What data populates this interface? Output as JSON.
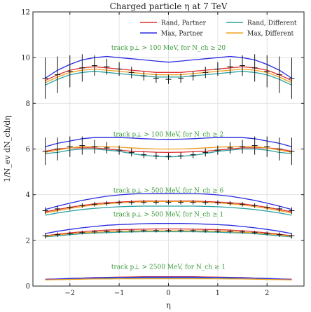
{
  "chart_data": {
    "type": "line",
    "title": "Charged particle η at 7 TeV",
    "xlabel": "η",
    "ylabel": "1/N_ev dN_ch/dη",
    "xlim": [
      -2.75,
      2.75
    ],
    "ylim": [
      0,
      12
    ],
    "xticks": [
      -2,
      -1,
      0,
      1,
      2
    ],
    "yticks": [
      0,
      2,
      4,
      6,
      8,
      10,
      12
    ],
    "grid": true,
    "legend_position": "top-right",
    "legend": [
      {
        "name": "Rand, Partner",
        "color": "#e03030"
      },
      {
        "name": "Rand, Different",
        "color": "#2aa1a0"
      },
      {
        "name": "Max, Partner",
        "color": "#2a2ae0"
      },
      {
        "name": "Max, Different",
        "color": "#f0a020"
      }
    ],
    "annotations": [
      {
        "text": "track p⊥ > 100 MeV, for N_ch ≥ 20",
        "x": 0,
        "y": 10.35
      },
      {
        "text": "track p⊥ > 100 MeV, for N_ch ≥ 2",
        "x": 0,
        "y": 6.55
      },
      {
        "text": "track p⊥ > 500 MeV, for N_ch ≥ 6",
        "x": 0,
        "y": 4.1
      },
      {
        "text": "track p⊥ > 500 MeV, for N_ch ≥ 1",
        "x": 0,
        "y": 3.05
      },
      {
        "text": "track p⊥ > 2500 MeV, for N_ch ≥ 1",
        "x": 0,
        "y": 0.75
      }
    ],
    "panels": [
      {
        "name": "track p⊥ > 100 MeV, for N_ch ≥ 20",
        "x": [
          -2.5,
          -2.25,
          -2.0,
          -1.75,
          -1.5,
          -1.25,
          -1.0,
          -0.75,
          -0.5,
          -0.25,
          0.0,
          0.25,
          0.5,
          0.75,
          1.0,
          1.25,
          1.5,
          1.75,
          2.0,
          2.25,
          2.5
        ],
        "data": {
          "y": [
            9.1,
            9.25,
            9.4,
            9.55,
            9.65,
            9.6,
            9.5,
            9.35,
            9.2,
            9.1,
            9.05,
            9.1,
            9.2,
            9.35,
            9.5,
            9.6,
            9.65,
            9.55,
            9.4,
            9.25,
            9.1
          ],
          "err": [
            0.9,
            0.8,
            0.7,
            0.6,
            0.45,
            0.35,
            0.3,
            0.25,
            0.2,
            0.2,
            0.2,
            0.2,
            0.2,
            0.25,
            0.3,
            0.35,
            0.45,
            0.6,
            0.7,
            0.8,
            0.9
          ]
        },
        "series": [
          {
            "name": "Rand, Partner",
            "values": [
              9.0,
              9.25,
              9.45,
              9.55,
              9.6,
              9.55,
              9.5,
              9.45,
              9.4,
              9.35,
              9.35,
              9.35,
              9.4,
              9.45,
              9.5,
              9.55,
              9.6,
              9.55,
              9.45,
              9.25,
              9.0
            ]
          },
          {
            "name": "Rand, Different",
            "values": [
              8.8,
              9.05,
              9.25,
              9.35,
              9.4,
              9.35,
              9.3,
              9.25,
              9.2,
              9.15,
              9.15,
              9.15,
              9.2,
              9.25,
              9.3,
              9.35,
              9.4,
              9.35,
              9.25,
              9.05,
              8.8
            ]
          },
          {
            "name": "Max, Partner",
            "values": [
              9.1,
              9.45,
              9.7,
              9.9,
              10.0,
              10.05,
              10.0,
              9.95,
              9.9,
              9.85,
              9.8,
              9.85,
              9.9,
              9.95,
              10.0,
              10.05,
              10.0,
              9.9,
              9.7,
              9.45,
              9.1
            ]
          },
          {
            "name": "Max, Different",
            "values": [
              8.9,
              9.15,
              9.35,
              9.45,
              9.5,
              9.45,
              9.4,
              9.35,
              9.3,
              9.25,
              9.25,
              9.25,
              9.3,
              9.35,
              9.4,
              9.45,
              9.5,
              9.45,
              9.35,
              9.15,
              8.9
            ]
          }
        ]
      },
      {
        "name": "track p⊥ > 100 MeV, for N_ch ≥ 2",
        "x": [
          -2.5,
          -2.25,
          -2.0,
          -1.75,
          -1.5,
          -1.25,
          -1.0,
          -0.75,
          -0.5,
          -0.25,
          0.0,
          0.25,
          0.5,
          0.75,
          1.0,
          1.25,
          1.5,
          1.75,
          2.0,
          2.25,
          2.5
        ],
        "data": {
          "y": [
            5.9,
            6.0,
            6.1,
            6.15,
            6.1,
            6.05,
            5.95,
            5.85,
            5.75,
            5.7,
            5.68,
            5.7,
            5.75,
            5.85,
            5.95,
            6.05,
            6.1,
            6.15,
            6.1,
            6.0,
            5.9
          ],
          "err": [
            0.6,
            0.5,
            0.45,
            0.4,
            0.3,
            0.25,
            0.2,
            0.18,
            0.15,
            0.15,
            0.15,
            0.15,
            0.15,
            0.18,
            0.2,
            0.25,
            0.3,
            0.4,
            0.45,
            0.5,
            0.6
          ]
        },
        "series": [
          {
            "name": "Rand, Partner",
            "values": [
              5.9,
              6.0,
              6.05,
              6.05,
              6.05,
              6.0,
              5.95,
              5.9,
              5.88,
              5.86,
              5.85,
              5.86,
              5.88,
              5.9,
              5.95,
              6.0,
              6.05,
              6.05,
              6.05,
              6.0,
              5.9
            ]
          },
          {
            "name": "Rand, Different",
            "values": [
              5.8,
              5.85,
              5.95,
              6.0,
              6.0,
              5.95,
              5.9,
              5.8,
              5.72,
              5.68,
              5.65,
              5.68,
              5.72,
              5.8,
              5.9,
              5.95,
              6.0,
              6.0,
              5.95,
              5.85,
              5.8
            ]
          },
          {
            "name": "Max, Partner",
            "values": [
              6.1,
              6.25,
              6.35,
              6.45,
              6.5,
              6.5,
              6.5,
              6.48,
              6.45,
              6.43,
              6.42,
              6.43,
              6.45,
              6.48,
              6.5,
              6.5,
              6.5,
              6.45,
              6.35,
              6.25,
              6.1
            ]
          },
          {
            "name": "Max, Different",
            "values": [
              5.85,
              5.95,
              6.05,
              6.1,
              6.1,
              6.1,
              6.08,
              6.05,
              6.02,
              6.0,
              6.0,
              6.0,
              6.02,
              6.05,
              6.08,
              6.1,
              6.1,
              6.1,
              6.05,
              5.95,
              5.85
            ]
          }
        ]
      },
      {
        "name": "track p⊥ > 500 MeV, for N_ch ≥ 6",
        "x": [
          -2.5,
          -2.25,
          -2.0,
          -1.75,
          -1.5,
          -1.25,
          -1.0,
          -0.75,
          -0.5,
          -0.25,
          0.0,
          0.25,
          0.5,
          0.75,
          1.0,
          1.25,
          1.5,
          1.75,
          2.0,
          2.25,
          2.5
        ],
        "data": {
          "y": [
            3.3,
            3.38,
            3.45,
            3.52,
            3.58,
            3.62,
            3.65,
            3.66,
            3.67,
            3.67,
            3.67,
            3.67,
            3.67,
            3.66,
            3.65,
            3.62,
            3.58,
            3.52,
            3.45,
            3.38,
            3.3
          ],
          "err": [
            0.15,
            0.13,
            0.12,
            0.1,
            0.1,
            0.1,
            0.1,
            0.1,
            0.1,
            0.1,
            0.1,
            0.1,
            0.1,
            0.1,
            0.1,
            0.1,
            0.1,
            0.1,
            0.12,
            0.13,
            0.15
          ]
        },
        "series": [
          {
            "name": "Rand, Partner",
            "values": [
              3.25,
              3.35,
              3.45,
              3.53,
              3.6,
              3.65,
              3.68,
              3.7,
              3.72,
              3.72,
              3.72,
              3.72,
              3.72,
              3.7,
              3.68,
              3.65,
              3.6,
              3.53,
              3.45,
              3.35,
              3.25
            ]
          },
          {
            "name": "Rand, Different",
            "values": [
              3.1,
              3.2,
              3.28,
              3.35,
              3.4,
              3.44,
              3.47,
              3.49,
              3.5,
              3.5,
              3.5,
              3.5,
              3.5,
              3.49,
              3.47,
              3.44,
              3.4,
              3.35,
              3.28,
              3.2,
              3.1
            ]
          },
          {
            "name": "Max, Partner",
            "values": [
              3.35,
              3.5,
              3.63,
              3.75,
              3.85,
              3.93,
              3.99,
              4.03,
              4.05,
              4.06,
              4.06,
              4.06,
              4.05,
              4.03,
              3.99,
              3.93,
              3.85,
              3.75,
              3.63,
              3.5,
              3.35
            ]
          },
          {
            "name": "Max, Different",
            "values": [
              3.2,
              3.3,
              3.4,
              3.48,
              3.55,
              3.6,
              3.64,
              3.67,
              3.69,
              3.7,
              3.7,
              3.7,
              3.69,
              3.67,
              3.64,
              3.6,
              3.55,
              3.48,
              3.4,
              3.3,
              3.2
            ]
          }
        ]
      },
      {
        "name": "track p⊥ > 500 MeV, for N_ch ≥ 1",
        "x": [
          -2.5,
          -2.25,
          -2.0,
          -1.75,
          -1.5,
          -1.25,
          -1.0,
          -0.75,
          -0.5,
          -0.25,
          0.0,
          0.25,
          0.5,
          0.75,
          1.0,
          1.25,
          1.5,
          1.75,
          2.0,
          2.25,
          2.5
        ],
        "data": {
          "y": [
            2.2,
            2.25,
            2.3,
            2.34,
            2.37,
            2.39,
            2.41,
            2.42,
            2.43,
            2.43,
            2.43,
            2.43,
            2.43,
            2.42,
            2.41,
            2.39,
            2.37,
            2.34,
            2.3,
            2.25,
            2.2
          ],
          "err": [
            0.12,
            0.1,
            0.09,
            0.08,
            0.08,
            0.08,
            0.08,
            0.08,
            0.08,
            0.08,
            0.08,
            0.08,
            0.08,
            0.08,
            0.08,
            0.08,
            0.08,
            0.08,
            0.09,
            0.1,
            0.12
          ]
        },
        "series": [
          {
            "name": "Rand, Partner",
            "values": [
              2.2,
              2.27,
              2.33,
              2.38,
              2.42,
              2.45,
              2.47,
              2.48,
              2.49,
              2.5,
              2.5,
              2.5,
              2.49,
              2.48,
              2.47,
              2.45,
              2.42,
              2.38,
              2.33,
              2.27,
              2.2
            ]
          },
          {
            "name": "Rand, Different",
            "values": [
              2.15,
              2.2,
              2.25,
              2.29,
              2.32,
              2.34,
              2.36,
              2.37,
              2.38,
              2.38,
              2.38,
              2.38,
              2.38,
              2.37,
              2.36,
              2.34,
              2.32,
              2.29,
              2.25,
              2.2,
              2.15
            ]
          },
          {
            "name": "Max, Partner",
            "values": [
              2.3,
              2.4,
              2.48,
              2.55,
              2.61,
              2.66,
              2.69,
              2.71,
              2.73,
              2.74,
              2.74,
              2.74,
              2.73,
              2.71,
              2.69,
              2.66,
              2.61,
              2.55,
              2.48,
              2.4,
              2.3
            ]
          },
          {
            "name": "Max, Different",
            "values": [
              2.18,
              2.24,
              2.29,
              2.33,
              2.36,
              2.38,
              2.4,
              2.41,
              2.42,
              2.42,
              2.42,
              2.42,
              2.42,
              2.41,
              2.4,
              2.38,
              2.36,
              2.33,
              2.29,
              2.24,
              2.18
            ]
          }
        ]
      },
      {
        "name": "track p⊥ > 2500 MeV, for N_ch ≥ 1",
        "x": [
          -2.5,
          -2.25,
          -2.0,
          -1.75,
          -1.5,
          -1.25,
          -1.0,
          -0.75,
          -0.5,
          -0.25,
          0.0,
          0.25,
          0.5,
          0.75,
          1.0,
          1.25,
          1.5,
          1.75,
          2.0,
          2.25,
          2.5
        ],
        "data": null,
        "series": [
          {
            "name": "Rand, Partner",
            "values": [
              0.3,
              0.31,
              0.33,
              0.35,
              0.37,
              0.38,
              0.39,
              0.4,
              0.41,
              0.41,
              0.41,
              0.41,
              0.41,
              0.4,
              0.39,
              0.38,
              0.37,
              0.35,
              0.33,
              0.31,
              0.3
            ]
          },
          {
            "name": "Rand, Different",
            "values": [
              0.28,
              0.29,
              0.3,
              0.31,
              0.32,
              0.33,
              0.33,
              0.34,
              0.34,
              0.34,
              0.34,
              0.34,
              0.34,
              0.34,
              0.33,
              0.33,
              0.32,
              0.31,
              0.3,
              0.29,
              0.28
            ]
          },
          {
            "name": "Max, Partner",
            "values": [
              0.29,
              0.31,
              0.33,
              0.35,
              0.36,
              0.37,
              0.38,
              0.38,
              0.39,
              0.39,
              0.39,
              0.39,
              0.39,
              0.38,
              0.38,
              0.37,
              0.36,
              0.35,
              0.33,
              0.31,
              0.29
            ]
          },
          {
            "name": "Max, Different",
            "values": [
              0.27,
              0.28,
              0.29,
              0.3,
              0.31,
              0.31,
              0.32,
              0.32,
              0.32,
              0.32,
              0.32,
              0.32,
              0.32,
              0.32,
              0.32,
              0.31,
              0.31,
              0.3,
              0.29,
              0.28,
              0.27
            ]
          }
        ]
      }
    ]
  }
}
